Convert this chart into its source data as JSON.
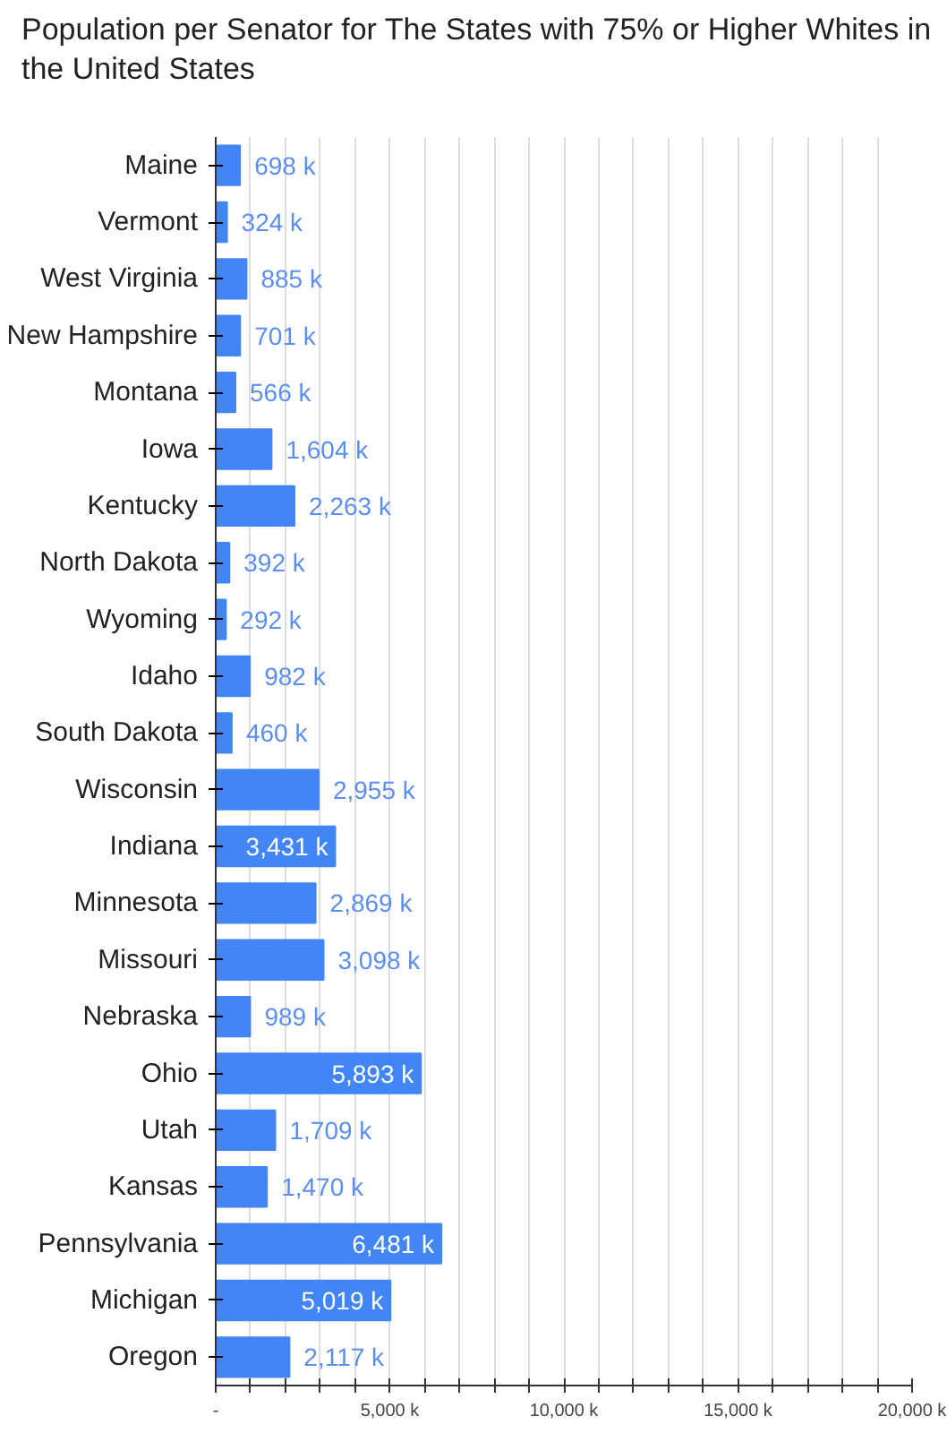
{
  "chart_data": {
    "type": "bar",
    "orientation": "horizontal",
    "title": "Population per Senator for The States with 75% or Higher Whites in the United States",
    "categories": [
      "Maine",
      "Vermont",
      "West Virginia",
      "New Hampshire",
      "Montana",
      "Iowa",
      "Kentucky",
      "North Dakota",
      "Wyoming",
      "Idaho",
      "South Dakota",
      "Wisconsin",
      "Indiana",
      "Minnesota",
      "Missouri",
      "Nebraska",
      "Ohio",
      "Utah",
      "Kansas",
      "Pennsylvania",
      "Michigan",
      "Oregon"
    ],
    "values": [
      698,
      324,
      885,
      701,
      566,
      1604,
      2263,
      392,
      292,
      982,
      460,
      2955,
      3431,
      2869,
      3098,
      989,
      5893,
      1709,
      1470,
      6481,
      5019,
      2117
    ],
    "value_labels": [
      "698 k",
      "324 k",
      "885 k",
      "701 k",
      "566 k",
      "1,604 k",
      "2,263 k",
      "392 k",
      "292 k",
      "982 k",
      "460 k",
      "2,955 k",
      "3,431 k",
      "2,869 k",
      "3,098 k",
      "989 k",
      "5,893 k",
      "1,709 k",
      "1,470 k",
      "6,481 k",
      "5,019 k",
      "2,117 k"
    ],
    "color": "#4285f4",
    "xlim": [
      0,
      20000
    ],
    "xticks": [
      {
        "value": 0,
        "label": "-"
      },
      {
        "value": 1000,
        "label": null
      },
      {
        "value": 2000,
        "label": null
      },
      {
        "value": 3000,
        "label": null
      },
      {
        "value": 4000,
        "label": null
      },
      {
        "value": 5000,
        "label": "5,000 k"
      },
      {
        "value": 6000,
        "label": null
      },
      {
        "value": 7000,
        "label": null
      },
      {
        "value": 8000,
        "label": null
      },
      {
        "value": 9000,
        "label": null
      },
      {
        "value": 10000,
        "label": "10,000 k"
      },
      {
        "value": 11000,
        "label": null
      },
      {
        "value": 12000,
        "label": null
      },
      {
        "value": 13000,
        "label": null
      },
      {
        "value": 14000,
        "label": null
      },
      {
        "value": 15000,
        "label": "15,000 k"
      },
      {
        "value": 16000,
        "label": null
      },
      {
        "value": 17000,
        "label": null
      },
      {
        "value": 18000,
        "label": null
      },
      {
        "value": 19000,
        "label": null
      },
      {
        "value": 20000,
        "label": "20,000 k"
      }
    ],
    "grid": "x"
  }
}
